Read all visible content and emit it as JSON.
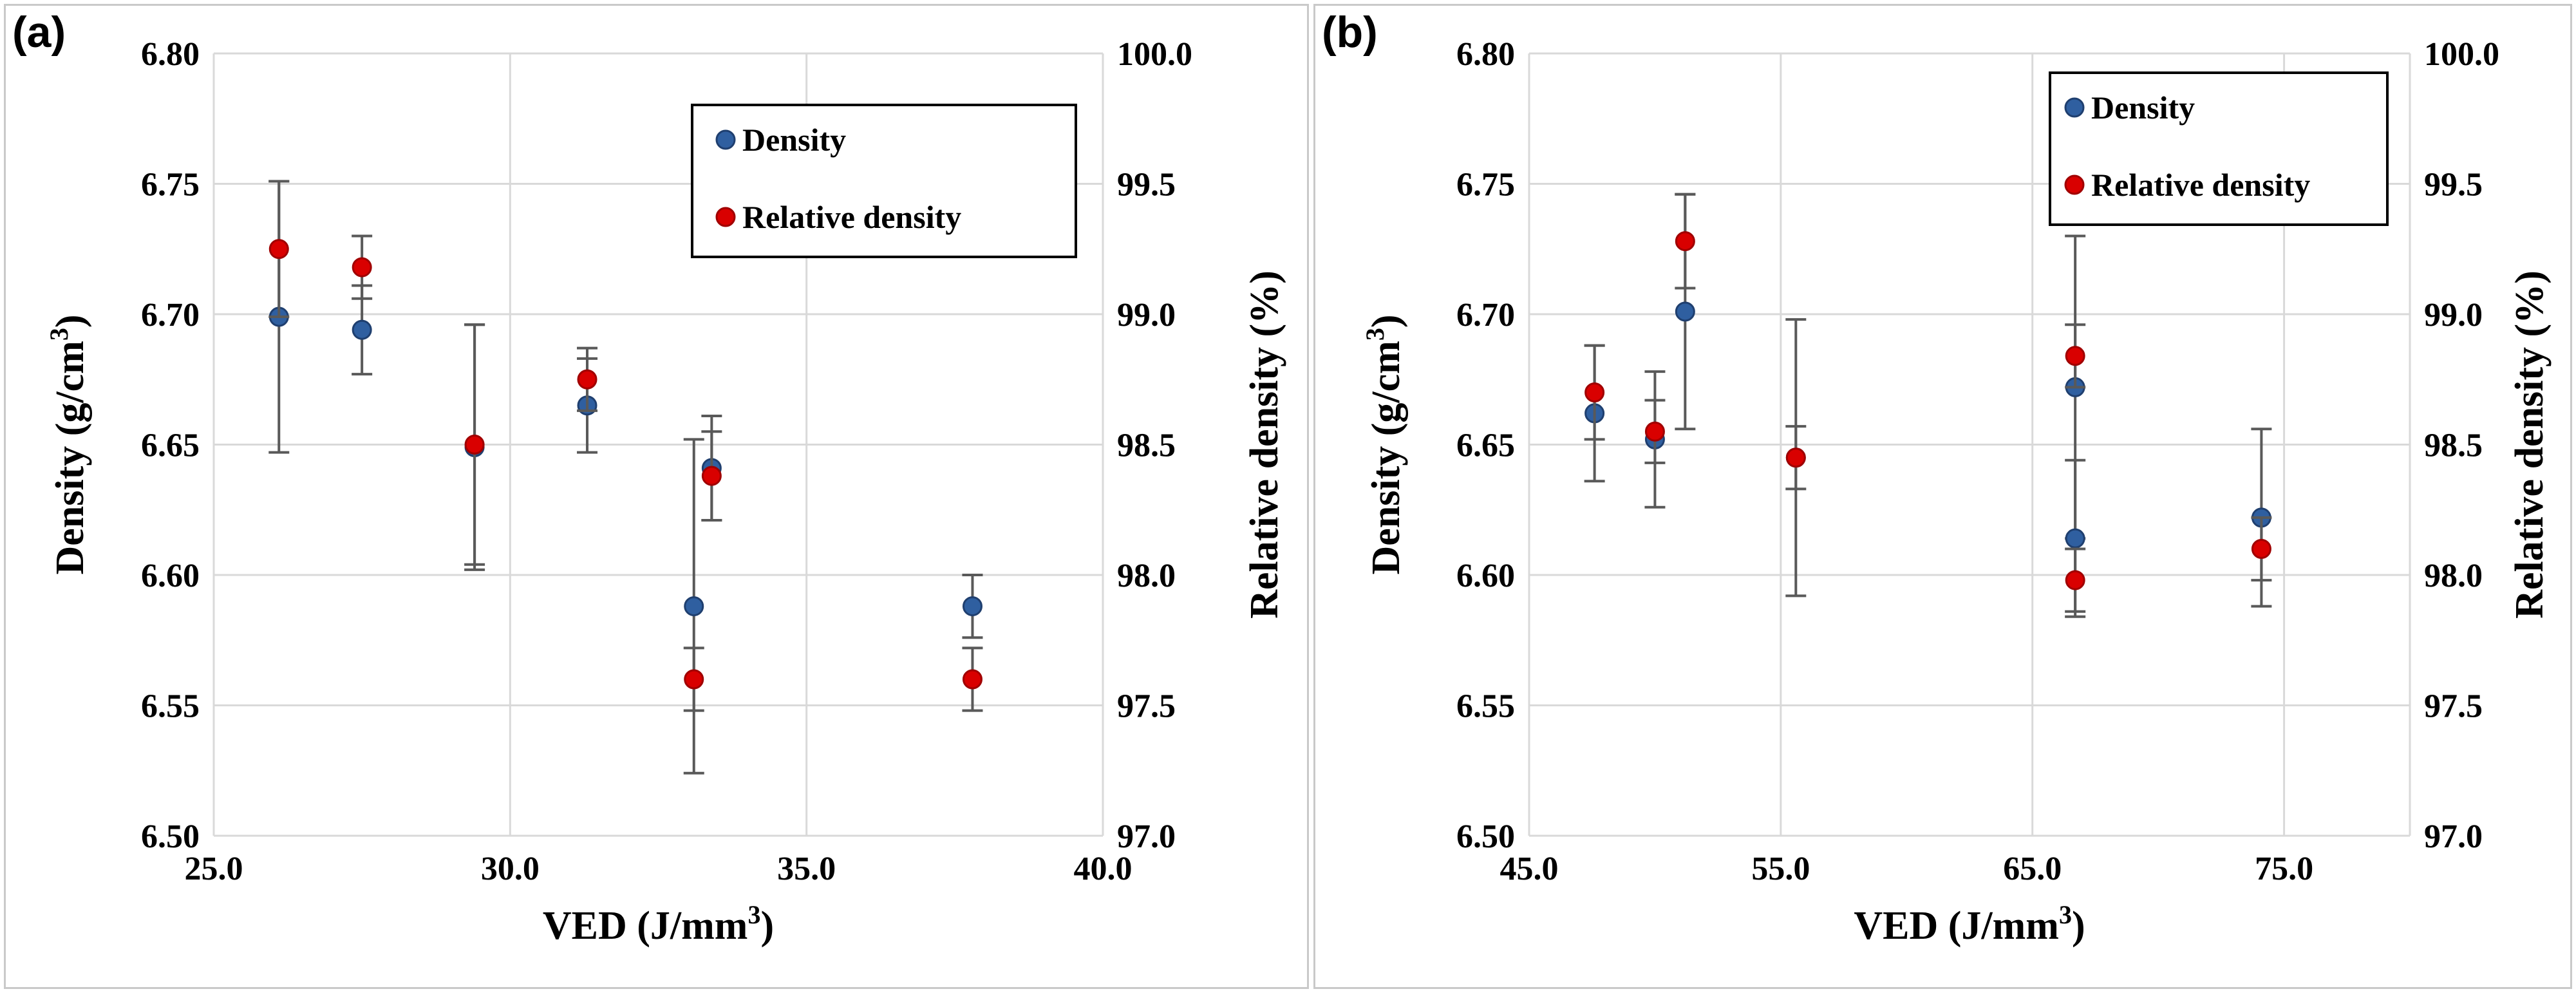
{
  "colors": {
    "density": "#2f5fa0",
    "density_edge": "#1f3f6f",
    "relative": "#d90000",
    "relative_edge": "#a00000",
    "grid": "#d9d9d9",
    "errorbar": "#595959"
  },
  "chart_data": [
    {
      "panel_label": "(a)",
      "type": "scatter",
      "xlabel": "VED (J/mm",
      "xlabel_sup": "3",
      "xlabel_end": ")",
      "ylabel": "Density (g/cm",
      "ylabel_sup": "3",
      "ylabel_end": ")",
      "y2label": "Relative density (%)",
      "xlim": [
        25,
        40
      ],
      "xticks": [
        "25.0",
        "30.0",
        "35.0",
        "40.0"
      ],
      "xtick_values": [
        25,
        30,
        35,
        40
      ],
      "ylim": [
        6.5,
        6.8
      ],
      "yticks": [
        "6.50",
        "6.55",
        "6.60",
        "6.65",
        "6.70",
        "6.75",
        "6.80"
      ],
      "ytick_values": [
        6.5,
        6.55,
        6.6,
        6.65,
        6.7,
        6.75,
        6.8
      ],
      "y2lim": [
        97.0,
        100.0
      ],
      "y2ticks": [
        "97.0",
        "97.5",
        "98.0",
        "98.5",
        "99.0",
        "99.5",
        "100.0"
      ],
      "y2tick_values": [
        97.0,
        97.5,
        98.0,
        98.5,
        99.0,
        99.5,
        100.0
      ],
      "grid": true,
      "legend": "top-right",
      "series": [
        {
          "name": "Density",
          "axis": "left",
          "points": [
            {
              "x": 26.1,
              "y": 6.699,
              "err": 0.052
            },
            {
              "x": 27.5,
              "y": 6.694,
              "err": 0.017
            },
            {
              "x": 29.4,
              "y": 6.649,
              "err": 0.047
            },
            {
              "x": 31.3,
              "y": 6.665,
              "err": 0.018
            },
            {
              "x": 33.1,
              "y": 6.588,
              "err": 0.064
            },
            {
              "x": 33.4,
              "y": 6.641,
              "err": 0.02
            },
            {
              "x": 37.8,
              "y": 6.588,
              "err": 0.012
            }
          ]
        },
        {
          "name": "Relative density",
          "axis": "right",
          "points": [
            {
              "x": 26.1,
              "y": 99.25,
              "err": 0.26
            },
            {
              "x": 27.5,
              "y": 99.18,
              "err": 0.12
            },
            {
              "x": 29.4,
              "y": 98.5,
              "err": 0.46
            },
            {
              "x": 31.3,
              "y": 98.75,
              "err": 0.12
            },
            {
              "x": 33.1,
              "y": 97.6,
              "err": 0.12
            },
            {
              "x": 33.4,
              "y": 98.38,
              "err": 0.17
            },
            {
              "x": 37.8,
              "y": 97.6,
              "err": 0.12
            }
          ]
        }
      ]
    },
    {
      "panel_label": "(b)",
      "type": "scatter",
      "xlabel": "VED (J/mm",
      "xlabel_sup": "3",
      "xlabel_end": ")",
      "ylabel": "Density (g/cm",
      "ylabel_sup": "3",
      "ylabel_end": ")",
      "y2label": "Relative density (%)",
      "xlim": [
        45,
        80
      ],
      "xticks": [
        "45.0",
        "55.0",
        "65.0",
        "75.0"
      ],
      "xtick_values": [
        45,
        55,
        65,
        75
      ],
      "ylim": [
        6.5,
        6.8
      ],
      "yticks": [
        "6.50",
        "6.55",
        "6.60",
        "6.65",
        "6.70",
        "6.75",
        "6.80"
      ],
      "ytick_values": [
        6.5,
        6.55,
        6.6,
        6.65,
        6.7,
        6.75,
        6.8
      ],
      "y2lim": [
        97.0,
        100.0
      ],
      "y2ticks": [
        "97.0",
        "97.5",
        "98.0",
        "98.5",
        "99.0",
        "99.5",
        "100.0"
      ],
      "y2tick_values": [
        97.0,
        97.5,
        98.0,
        98.5,
        99.0,
        99.5,
        100.0
      ],
      "grid": true,
      "legend": "top-right",
      "series": [
        {
          "name": "Density",
          "axis": "left",
          "points": [
            {
              "x": 47.6,
              "y": 6.662,
              "err": 0.026
            },
            {
              "x": 50.0,
              "y": 6.652,
              "err": 0.026
            },
            {
              "x": 51.2,
              "y": 6.701,
              "err": 0.045
            },
            {
              "x": 55.6,
              "y": 6.645,
              "err": 0.053
            },
            {
              "x": 66.7,
              "y": 6.672,
              "err": 0.058
            },
            {
              "x": 66.7,
              "y": 6.614,
              "err": 0.03
            },
            {
              "x": 74.1,
              "y": 6.622,
              "err": 0.034
            }
          ]
        },
        {
          "name": "Relative density",
          "axis": "right",
          "points": [
            {
              "x": 47.6,
              "y": 98.7,
              "err": 0.18
            },
            {
              "x": 50.0,
              "y": 98.55,
              "err": 0.12
            },
            {
              "x": 51.2,
              "y": 99.28,
              "err": 0.18
            },
            {
              "x": 55.6,
              "y": 98.45,
              "err": 0.12
            },
            {
              "x": 66.7,
              "y": 98.84,
              "err": 0.12
            },
            {
              "x": 66.7,
              "y": 97.98,
              "err": 0.12
            },
            {
              "x": 74.1,
              "y": 98.1,
              "err": 0.12
            }
          ]
        }
      ]
    }
  ]
}
